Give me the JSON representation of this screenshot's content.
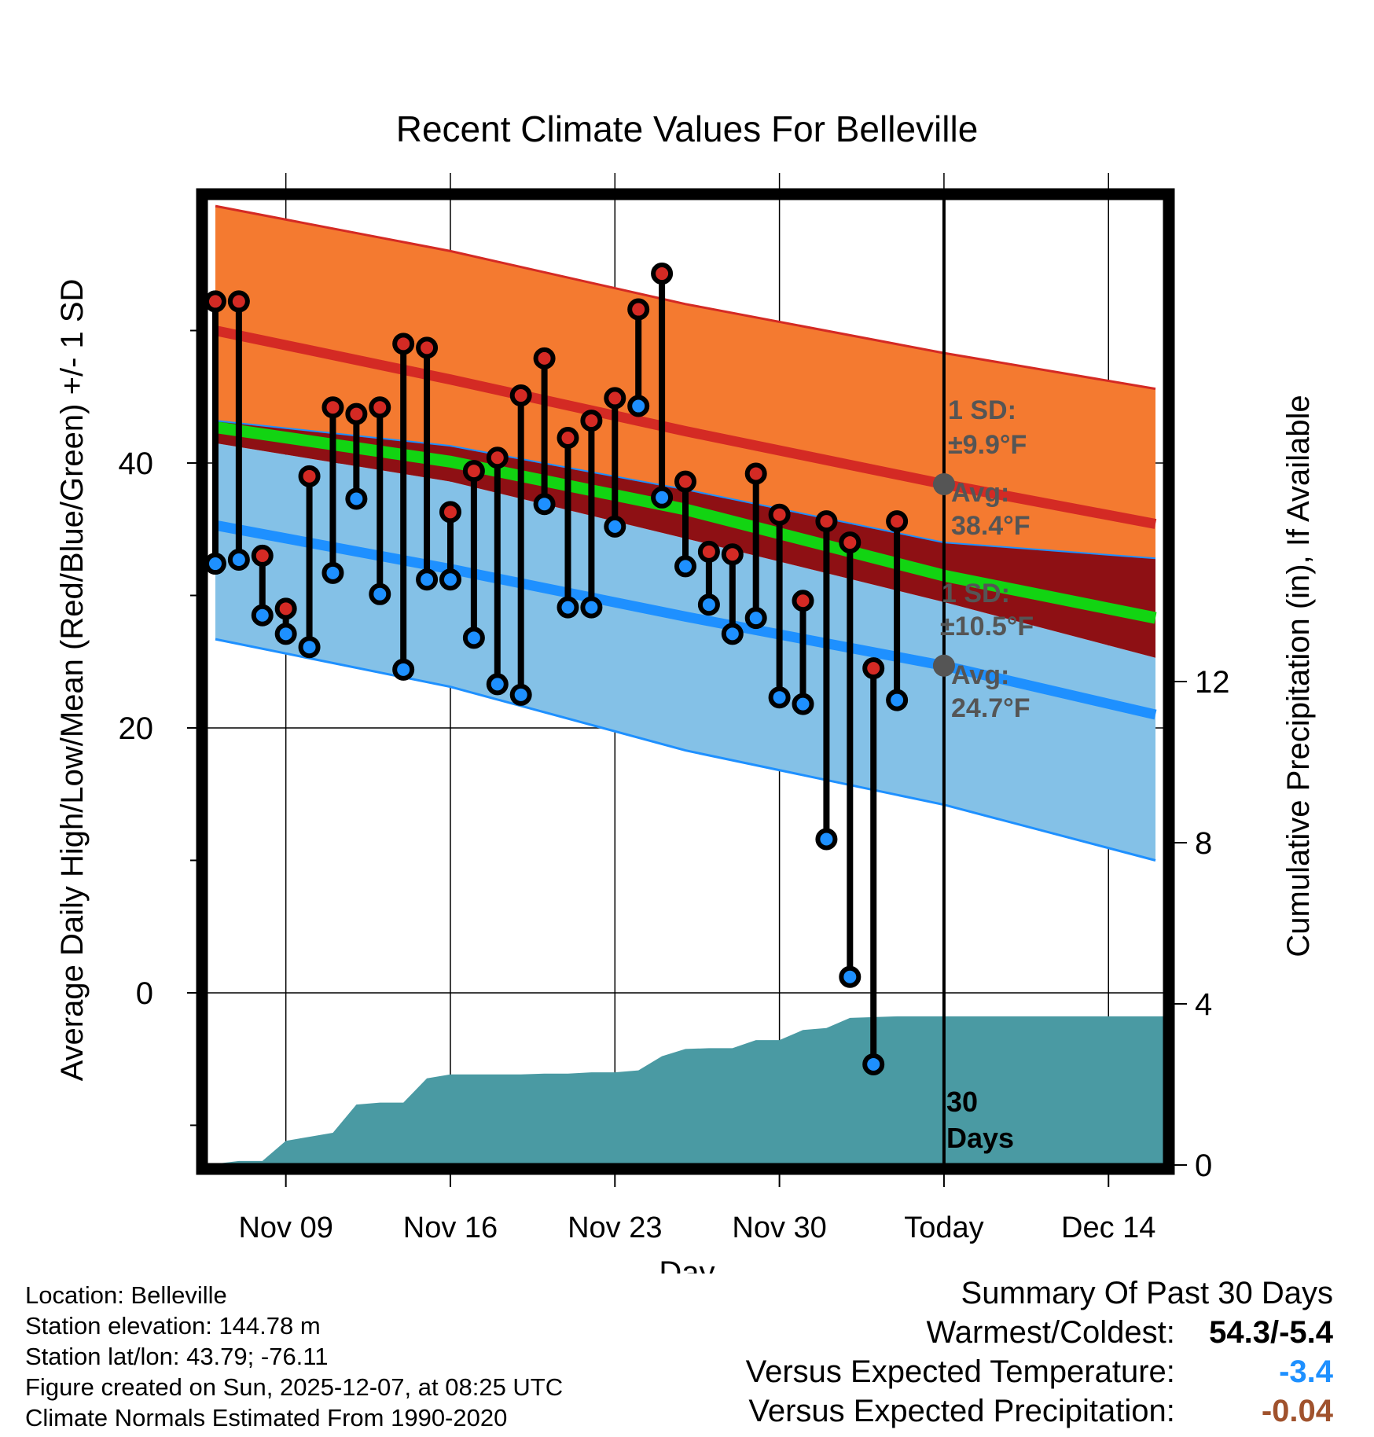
{
  "chart_data": {
    "type": "line",
    "title": "Recent Climate Values For Belleville",
    "xlabel": "Day",
    "ylabel": "Average Daily High/Low/Mean (Red/Blue/Green) +/- 1 SD",
    "y2label": "Cumulative Precipitation (in), If Available",
    "ylim": [
      -13,
      60
    ],
    "y2lim": [
      0,
      24
    ],
    "xlim": [
      -0.4,
      40.4
    ],
    "x_tick_days": [
      3,
      10,
      17,
      24,
      31,
      38
    ],
    "x_tick_labels": [
      "Nov 09",
      "Nov 16",
      "Nov 23",
      "Nov 30",
      "Today",
      "Dec 14"
    ],
    "y_ticks": [
      0,
      20,
      40
    ],
    "y_minor_ticks": [
      -10,
      10,
      30,
      50
    ],
    "y2_ticks": [
      0,
      4,
      8,
      12
    ],
    "today_day": 31,
    "normals_days": [
      0,
      10,
      20,
      31,
      40
    ],
    "normal_high_plus_sd": [
      59.4,
      56.0,
      52.0,
      48.3,
      45.6
    ],
    "normal_high": [
      50.0,
      46.3,
      42.4,
      38.4,
      35.4
    ],
    "normal_high_minus_sd": [
      43.2,
      41.3,
      38.0,
      34.0,
      32.8
    ],
    "normal_mean": [
      42.7,
      40.1,
      36.5,
      31.5,
      28.3
    ],
    "normal_low_plus_sd": [
      41.5,
      38.6,
      34.3,
      29.5,
      25.3
    ],
    "normal_low": [
      35.3,
      32.0,
      28.4,
      24.7,
      21.0
    ],
    "normal_low_minus_sd": [
      26.7,
      23.1,
      18.3,
      14.2,
      10.0
    ],
    "observed_days": [
      0,
      1,
      2,
      3,
      4,
      5,
      6,
      7,
      8,
      9,
      10,
      11,
      12,
      13,
      14,
      15,
      16,
      17,
      18,
      19,
      20,
      21,
      22,
      23,
      24,
      25,
      26,
      27,
      28,
      29
    ],
    "observed_high": [
      52.2,
      52.2,
      33.0,
      29.0,
      39.0,
      44.2,
      43.7,
      44.2,
      49.0,
      48.7,
      36.3,
      39.4,
      40.4,
      45.1,
      47.9,
      41.9,
      43.2,
      44.9,
      51.6,
      54.3,
      38.6,
      33.3,
      33.1,
      39.2,
      36.1,
      29.6,
      35.6,
      34.0,
      24.5,
      35.6
    ],
    "observed_low": [
      32.4,
      32.7,
      28.5,
      27.1,
      26.1,
      31.7,
      37.3,
      30.1,
      24.4,
      31.2,
      31.2,
      26.8,
      23.3,
      22.5,
      36.9,
      29.1,
      29.1,
      35.2,
      44.3,
      37.4,
      32.2,
      29.3,
      27.1,
      28.3,
      22.3,
      21.8,
      11.6,
      1.2,
      -5.4,
      22.1
    ],
    "precip_days": [
      -0.4,
      1.0,
      2.0,
      3.0,
      4.0,
      5.0,
      6.0,
      7.0,
      8.0,
      9.0,
      10.0,
      11.0,
      12.0,
      13.0,
      14.0,
      15.0,
      16.0,
      17.0,
      18.0,
      19.0,
      20.0,
      21.0,
      22.0,
      23.0,
      24.0,
      25.0,
      26.0,
      27.0,
      28.0,
      29.0,
      30.0,
      31.0,
      40.4
    ],
    "cumulative_precip": [
      0.0,
      0.1,
      0.1,
      0.6,
      0.7,
      0.8,
      1.5,
      1.55,
      1.55,
      2.15,
      2.25,
      2.25,
      2.25,
      2.25,
      2.27,
      2.27,
      2.3,
      2.3,
      2.35,
      2.7,
      2.88,
      2.9,
      2.9,
      3.1,
      3.1,
      3.35,
      3.4,
      3.65,
      3.67,
      3.69,
      3.69,
      3.69,
      3.69
    ],
    "annotations": {
      "high_sd_label": "1 SD:",
      "high_sd_value": "±9.9°F",
      "high_avg_label": "Avg:",
      "high_avg_value": "38.4°F",
      "low_sd_label": "1 SD:",
      "low_sd_value": "±10.5°F",
      "low_avg_label": "Avg:",
      "low_avg_value": "24.7°F",
      "days_label_1": "30",
      "days_label_2": "Days"
    },
    "colors": {
      "high_band": "#f47a30",
      "high_line": "#d42a24",
      "mean_band": "#8e1014",
      "mean_line": "#12d412",
      "low_band": "#84c1e7",
      "low_line": "#1e90ff",
      "precip": "#4a9aa3",
      "marker_high": "#d42a24",
      "marker_low": "#1e90ff",
      "marker_avg": "#555555",
      "annotation_text": "#555555"
    }
  },
  "footer": {
    "location": "Location: Belleville",
    "elevation": "Station elevation: 144.78 m",
    "latlon": "Station lat/lon: 43.79; -76.11",
    "created": "Figure created on Sun, 2025-12-07, at 08:25 UTC",
    "normals": "Climate Normals Estimated From 1990-2020"
  },
  "summary": {
    "title": "Summary Of Past 30 Days",
    "warm_cold_label": "Warmest/Coldest:",
    "warm_cold_value": "54.3/-5.4",
    "temp_label": "Versus Expected Temperature:",
    "temp_value": "-3.4",
    "temp_color": "#1e90ff",
    "precip_label": "Versus Expected Precipitation:",
    "precip_value": "-0.04",
    "precip_color": "#a0522d"
  }
}
